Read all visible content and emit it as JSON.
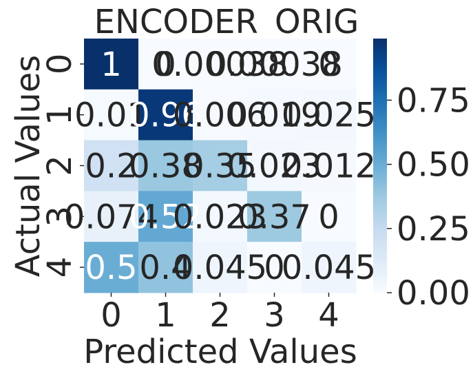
{
  "chart_data": {
    "type": "heatmap",
    "title": "ENCODER_ORIG",
    "xlabel": "Predicted Values",
    "ylabel": "Actual Values",
    "x_categories": [
      "0",
      "1",
      "2",
      "3",
      "4"
    ],
    "y_categories": [
      "0",
      "1",
      "2",
      "3",
      "4"
    ],
    "values": [
      [
        0.99,
        0.0,
        0.0,
        0.0,
        0.0
      ],
      [
        0.01,
        0.96,
        0.006,
        0.019,
        0.025
      ],
      [
        0.2,
        0.38,
        0.35,
        0.023,
        0.012
      ],
      [
        0.074,
        0.52,
        0.023,
        0.37,
        0.0
      ],
      [
        0.5,
        0.4,
        0.045,
        0.0,
        0.045
      ]
    ],
    "cell_labels": [
      [
        "1",
        "0",
        "0.00038",
        "0.00038",
        "0"
      ],
      [
        "0.01",
        "0.96",
        "0.006",
        "0.019",
        "0.025"
      ],
      [
        "0.2",
        "0.38",
        "0.35",
        "0.023",
        "0.012"
      ],
      [
        "0.074",
        "0.52",
        "0.023",
        "0.37",
        "0"
      ],
      [
        "0.5",
        "0.4",
        "0.045",
        "0",
        "0.045"
      ]
    ],
    "colorbar": {
      "colormap": "Blues",
      "range": [
        0,
        0.99
      ],
      "ticks": [
        0.0,
        0.25,
        0.5,
        0.75
      ],
      "tick_labels": [
        "0.00",
        "0.25",
        "0.50",
        "0.75"
      ]
    },
    "grid": false,
    "annot_light_color": "#ffffff",
    "annot_dark_color": "#262626"
  }
}
